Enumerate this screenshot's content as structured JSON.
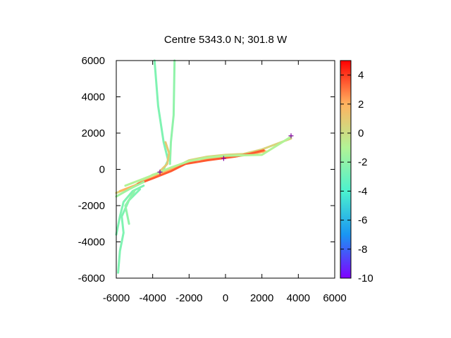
{
  "chart_data": {
    "type": "line",
    "title": "Centre 5343.0 N; 301.8  W",
    "xlabel": "",
    "ylabel": "",
    "xlim": [
      -6000,
      6000
    ],
    "ylim": [
      -6000,
      6000
    ],
    "xticks": [
      -6000,
      -4000,
      -2000,
      0,
      2000,
      4000,
      6000
    ],
    "yticks": [
      -6000,
      -4000,
      -2000,
      0,
      2000,
      4000,
      6000
    ],
    "grid": false,
    "colorbar": {
      "range": [
        -10,
        5
      ],
      "ticks": [
        4,
        2,
        0,
        -2,
        -4,
        -6,
        -8,
        -10
      ],
      "colors": [
        "#8000ff",
        "#1996f3",
        "#4cf2ce",
        "#b2f396",
        "#ffb360",
        "#ff0000"
      ]
    },
    "tracks": [
      {
        "value": -2.5,
        "points": [
          [
            -3900,
            6000
          ],
          [
            -3700,
            3500
          ],
          [
            -3400,
            1500
          ],
          [
            -3150,
            500
          ],
          [
            -3400,
            0
          ],
          [
            -3700,
            -300
          ]
        ]
      },
      {
        "value": -2.0,
        "points": [
          [
            -2800,
            6000
          ],
          [
            -2850,
            3000
          ],
          [
            -3000,
            1500
          ],
          [
            -3050,
            300
          ]
        ]
      },
      {
        "value": 1.0,
        "points": [
          [
            -3300,
            1500
          ],
          [
            -3100,
            900
          ],
          [
            -3200,
            300
          ],
          [
            -3600,
            -100
          ]
        ]
      },
      {
        "value": 0.5,
        "points": [
          [
            -6000,
            -1300
          ],
          [
            -5000,
            -900
          ],
          [
            -4000,
            -300
          ],
          [
            -3000,
            0
          ],
          [
            -2000,
            500
          ],
          [
            -1000,
            700
          ],
          [
            0,
            800
          ],
          [
            1000,
            850
          ],
          [
            2000,
            1100
          ],
          [
            3600,
            1700
          ]
        ]
      },
      {
        "value": 2.0,
        "points": [
          [
            -5800,
            -1200
          ],
          [
            -4500,
            -700
          ],
          [
            -3500,
            -200
          ],
          [
            -2500,
            250
          ],
          [
            -1500,
            550
          ],
          [
            0,
            650
          ],
          [
            1200,
            800
          ],
          [
            2200,
            1000
          ]
        ]
      },
      {
        "value": 3.5,
        "points": [
          [
            -4800,
            -800
          ],
          [
            -4000,
            -500
          ],
          [
            -3000,
            -100
          ],
          [
            -2200,
            300
          ],
          [
            -1000,
            500
          ],
          [
            500,
            700
          ],
          [
            1300,
            850
          ],
          [
            2100,
            1050
          ]
        ]
      },
      {
        "value": -1.0,
        "points": [
          [
            -5500,
            -900
          ],
          [
            -4200,
            -400
          ],
          [
            -3000,
            100
          ],
          [
            -2000,
            450
          ],
          [
            -1000,
            650
          ],
          [
            0,
            750
          ],
          [
            2000,
            800
          ],
          [
            3600,
            1800
          ]
        ]
      },
      {
        "value": -1.5,
        "points": [
          [
            -6000,
            -1500
          ],
          [
            -5300,
            -1100
          ],
          [
            -4500,
            -700
          ]
        ]
      },
      {
        "value": -2.5,
        "points": [
          [
            -6000,
            -3600
          ],
          [
            -5800,
            -2600
          ],
          [
            -5600,
            -1800
          ],
          [
            -5100,
            -1200
          ],
          [
            -4500,
            -900
          ]
        ]
      },
      {
        "value": -2.5,
        "points": [
          [
            -5900,
            -5700
          ],
          [
            -5800,
            -4500
          ],
          [
            -5600,
            -3500
          ],
          [
            -5700,
            -2600
          ],
          [
            -5300,
            -1700
          ],
          [
            -4700,
            -1100
          ]
        ]
      },
      {
        "value": -2.0,
        "points": [
          [
            -5300,
            -3000
          ],
          [
            -5500,
            -2000
          ],
          [
            -5000,
            -1200
          ]
        ]
      }
    ],
    "markers": [
      {
        "x": -3600,
        "y": -150
      },
      {
        "x": -100,
        "y": 600
      },
      {
        "x": 3600,
        "y": 1850
      }
    ]
  }
}
